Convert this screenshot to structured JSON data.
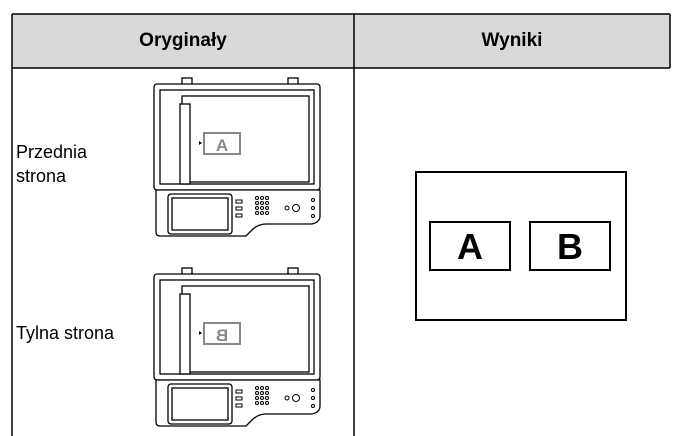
{
  "table": {
    "header": [
      "Oryginały",
      "Wyniki"
    ],
    "originals": [
      {
        "label": "Przednia strona",
        "page_letter": "A"
      },
      {
        "label": "Tylna strona",
        "page_letter": "B"
      }
    ],
    "result": [
      "A",
      "B"
    ]
  }
}
